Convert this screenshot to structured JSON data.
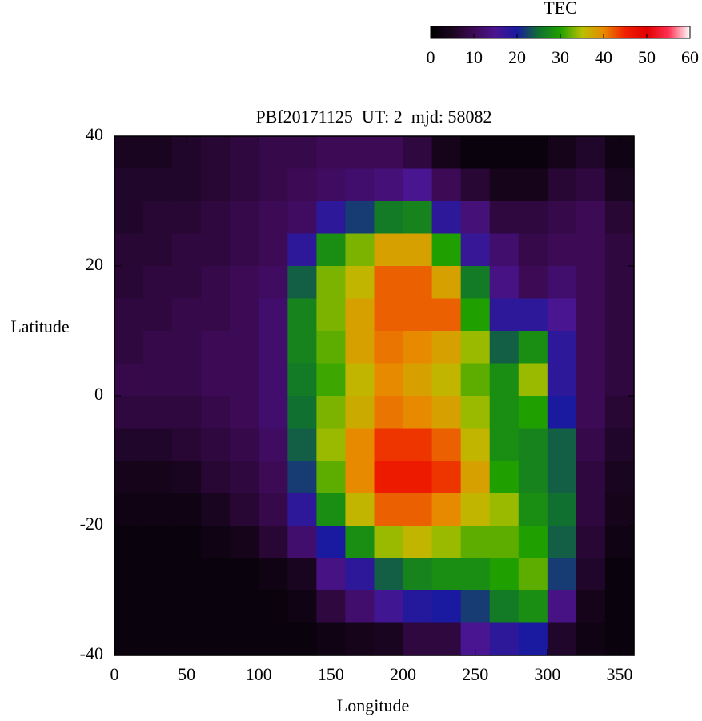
{
  "chart_data": {
    "type": "heatmap",
    "title": "PBf20171125  UT: 2  mjd: 58082",
    "xlabel": "Longitude",
    "ylabel": "Latitude",
    "colorbar_label": "TEC",
    "xlim": [
      0,
      360
    ],
    "ylim": [
      -40,
      40
    ],
    "xticks": [
      0,
      50,
      100,
      150,
      200,
      250,
      300,
      350
    ],
    "yticks": [
      -40,
      -20,
      0,
      20,
      40
    ],
    "zlim": [
      0,
      60
    ],
    "zticks": [
      0,
      10,
      20,
      30,
      40,
      50,
      60
    ],
    "colormap": [
      "#000000",
      "#1a0520",
      "#3d0a55",
      "#4a1590",
      "#1a1aa0",
      "#107030",
      "#20a000",
      "#b8c000",
      "#e88a00",
      "#f02000",
      "#e00000",
      "#ff3050",
      "#ffffff"
    ],
    "z": [
      [
        5,
        5,
        6,
        7,
        8,
        9,
        9,
        10,
        10,
        10,
        8,
        4,
        2,
        2,
        2,
        4,
        6,
        3
      ],
      [
        6,
        6,
        6,
        7,
        8,
        9,
        10,
        11,
        12,
        13,
        15,
        10,
        7,
        4,
        4,
        7,
        8,
        5
      ],
      [
        6,
        7,
        7,
        8,
        9,
        10,
        11,
        18,
        22,
        26,
        27,
        18,
        13,
        8,
        8,
        9,
        10,
        7
      ],
      [
        7,
        7,
        8,
        8,
        9,
        10,
        18,
        28,
        33,
        38,
        38,
        30,
        17,
        12,
        9,
        10,
        10,
        8
      ],
      [
        7,
        8,
        8,
        9,
        10,
        11,
        24,
        33,
        36,
        42,
        42,
        38,
        26,
        14,
        10,
        12,
        10,
        8
      ],
      [
        8,
        8,
        9,
        9,
        10,
        12,
        27,
        33,
        38,
        42,
        42,
        42,
        30,
        18,
        18,
        15,
        10,
        8
      ],
      [
        8,
        9,
        9,
        10,
        10,
        12,
        27,
        32,
        38,
        41,
        40,
        38,
        34,
        24,
        28,
        18,
        10,
        8
      ],
      [
        9,
        9,
        9,
        10,
        10,
        12,
        26,
        31,
        36,
        40,
        38,
        36,
        32,
        28,
        34,
        18,
        10,
        8
      ],
      [
        8,
        8,
        8,
        9,
        10,
        12,
        25,
        33,
        37,
        41,
        40,
        38,
        34,
        28,
        30,
        20,
        10,
        7
      ],
      [
        6,
        6,
        7,
        8,
        9,
        11,
        24,
        34,
        40,
        44,
        44,
        42,
        36,
        28,
        27,
        24,
        9,
        6
      ],
      [
        4,
        4,
        5,
        7,
        8,
        10,
        22,
        32,
        40,
        46,
        46,
        44,
        38,
        30,
        27,
        24,
        8,
        5
      ],
      [
        3,
        3,
        3,
        5,
        7,
        9,
        18,
        28,
        36,
        42,
        42,
        40,
        36,
        34,
        28,
        25,
        8,
        4
      ],
      [
        2,
        2,
        2,
        3,
        4,
        7,
        12,
        20,
        28,
        34,
        36,
        34,
        32,
        32,
        30,
        24,
        7,
        3
      ],
      [
        2,
        2,
        2,
        2,
        2,
        3,
        5,
        14,
        18,
        24,
        27,
        28,
        28,
        30,
        32,
        22,
        6,
        2
      ],
      [
        2,
        2,
        2,
        2,
        2,
        2,
        3,
        8,
        12,
        16,
        19,
        20,
        22,
        26,
        28,
        14,
        4,
        2
      ],
      [
        2,
        2,
        2,
        2,
        2,
        2,
        2,
        3,
        4,
        5,
        8,
        8,
        15,
        18,
        20,
        6,
        3,
        2
      ]
    ]
  }
}
